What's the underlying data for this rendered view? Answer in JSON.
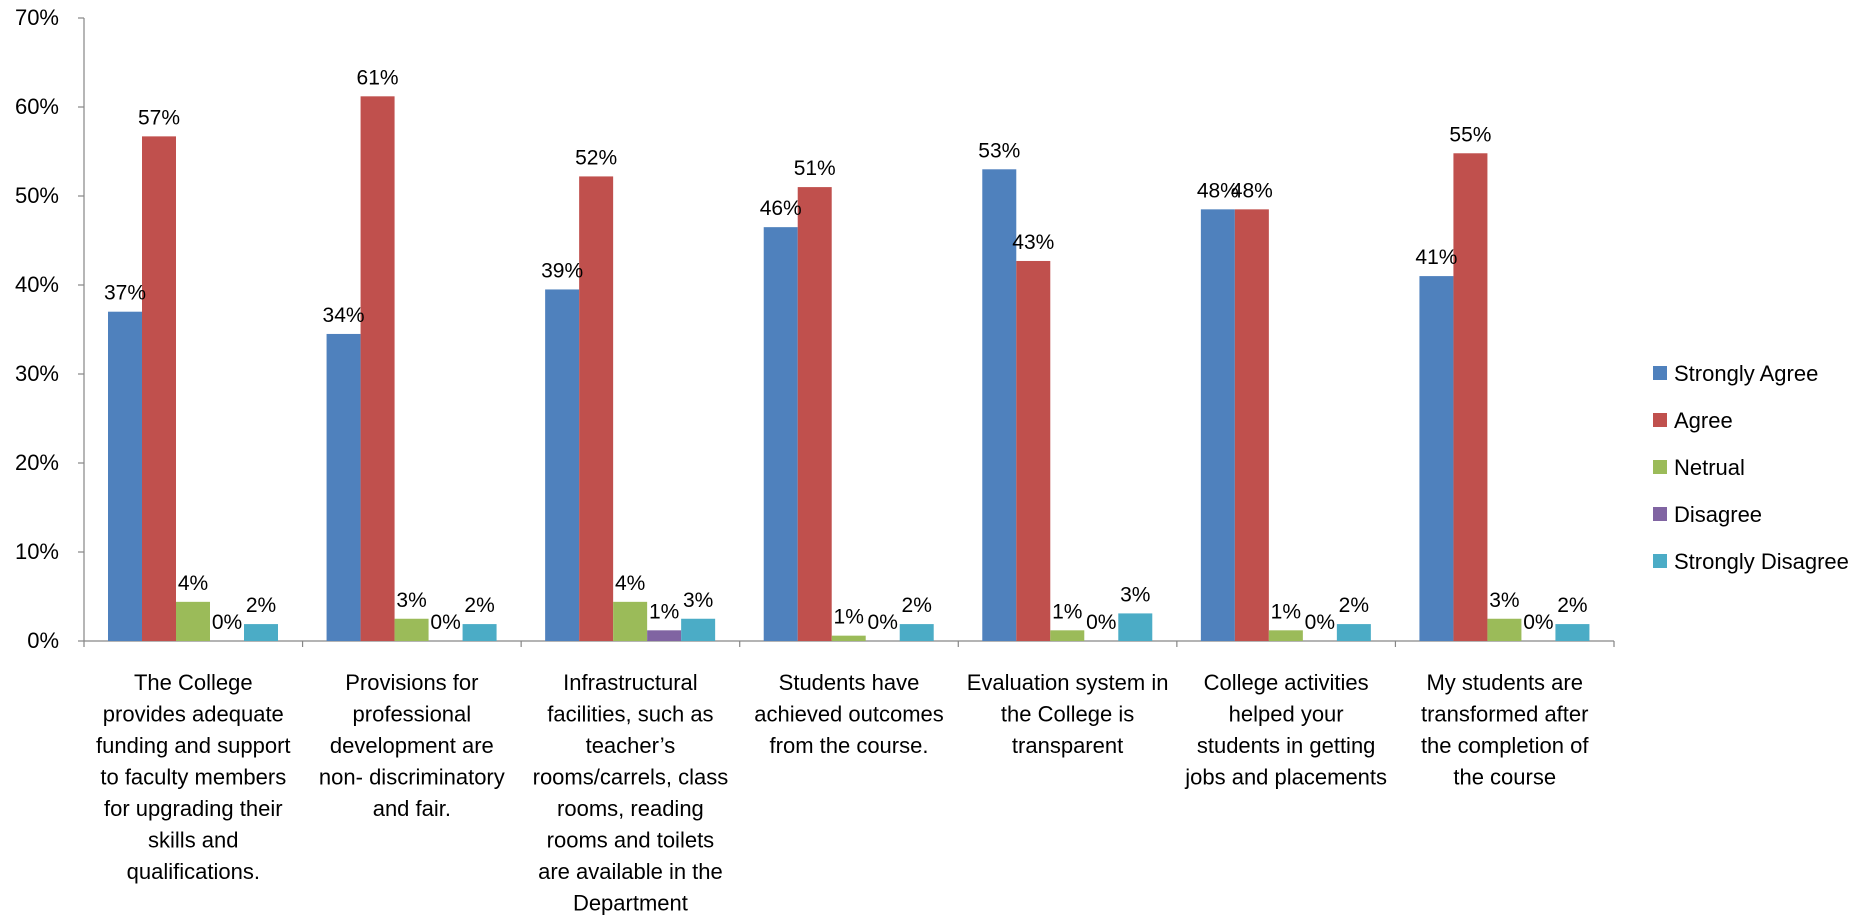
{
  "chart_data": {
    "type": "bar",
    "title": "",
    "xlabel": "",
    "ylabel": "",
    "ylim": [
      0,
      70
    ],
    "yticks": [
      "0%",
      "10%",
      "20%",
      "30%",
      "40%",
      "50%",
      "60%",
      "70%"
    ],
    "grid": false,
    "legend_position": "right",
    "categories": [
      [
        "The College",
        "provides adequate",
        "funding and support",
        "to faculty members",
        "for upgrading their",
        "skills and",
        "qualifications."
      ],
      [
        "Provisions for",
        "professional",
        "development are",
        "non- discriminatory",
        "and fair."
      ],
      [
        "Infrastructural",
        "facilities, such as",
        "teacher’s",
        "rooms/carrels, class",
        "rooms, reading",
        "rooms and toilets",
        "are available in the",
        "Department"
      ],
      [
        "Students have",
        "achieved outcomes",
        "from the course."
      ],
      [
        "Evaluation system in",
        "the College is",
        "transparent"
      ],
      [
        "College activities",
        "helped your",
        "students in getting",
        "jobs and placements"
      ],
      [
        "My students are",
        "transformed after",
        "the completion of",
        "the course"
      ]
    ],
    "series": [
      {
        "name": "Strongly Agree",
        "color": "#4F81BD",
        "values": [
          37,
          34.5,
          39.5,
          46.5,
          53,
          48.5,
          41
        ],
        "labels": [
          "37%",
          "34%",
          "39%",
          "46%",
          "53%",
          "48%",
          "41%"
        ]
      },
      {
        "name": "Agree",
        "color": "#C0504D",
        "values": [
          56.7,
          61.2,
          52.2,
          51,
          42.7,
          48.5,
          54.8
        ],
        "labels": [
          "57%",
          "61%",
          "52%",
          "51%",
          "43%",
          "48%",
          "55%"
        ]
      },
      {
        "name": "Netrual",
        "color": "#9BBB59",
        "values": [
          4.4,
          2.5,
          4.4,
          0.6,
          1.2,
          1.2,
          2.5
        ],
        "labels": [
          "4%",
          "3%",
          "4%",
          "1%",
          "1%",
          "1%",
          "3%"
        ]
      },
      {
        "name": "Disagree",
        "color": "#8064A2",
        "values": [
          0,
          0,
          1.2,
          0,
          0,
          0,
          0
        ],
        "labels": [
          "0%",
          "0%",
          "1%",
          "0%",
          "0%",
          "0%",
          "0%"
        ]
      },
      {
        "name": "Strongly Disagree",
        "color": "#4BACC6",
        "values": [
          1.9,
          1.9,
          2.5,
          1.9,
          3.1,
          1.9,
          1.9
        ],
        "labels": [
          "2%",
          "2%",
          "3%",
          "2%",
          "3%",
          "2%",
          "2%"
        ]
      }
    ]
  }
}
